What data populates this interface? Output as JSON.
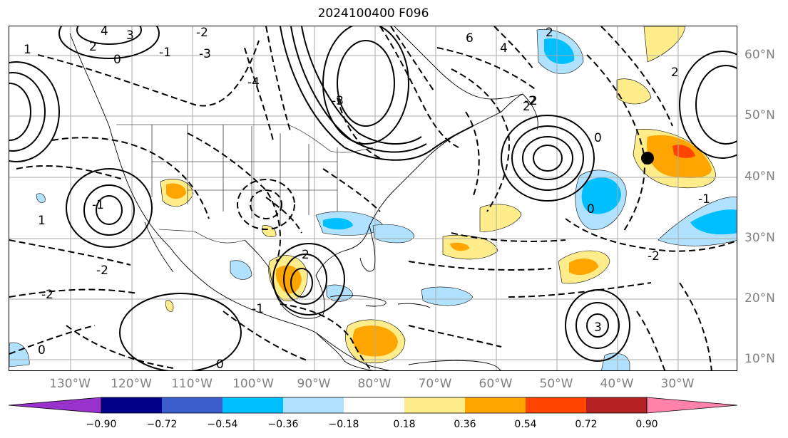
{
  "title": "2024100400 F096",
  "lon_labels": [
    "130°W",
    "120°W",
    "110°W",
    "100°W",
    "90°W",
    "80°W",
    "70°W",
    "60°W",
    "50°W",
    "40°W",
    "30°W"
  ],
  "lat_labels": [
    "60°N",
    "50°N",
    "40°N",
    "30°N",
    "20°N",
    "10°N"
  ],
  "colorbar": {
    "ticks": [
      "−0.90",
      "−0.72",
      "−0.54",
      "−0.36",
      "−0.18",
      "0.18",
      "0.36",
      "0.54",
      "0.72",
      "0.90"
    ],
    "colors": [
      "#9932cc",
      "#00008b",
      "#3a5fcd",
      "#00bfff",
      "#b0e2ff",
      "#ffffff",
      "#ffec8b",
      "#ffa500",
      "#ff4500",
      "#b22222",
      "#ff82ab"
    ]
  },
  "contour_labels": [
    "4",
    "3",
    "2",
    "0",
    "1",
    "-1",
    "-2",
    "-3",
    "-4",
    "6",
    "2",
    "4",
    "0",
    "-2",
    "2",
    "-2",
    "-1",
    "0",
    "2",
    "-3",
    "-2",
    "0",
    "3",
    "-1",
    "1",
    "-1",
    "2",
    "2",
    "-2",
    "0"
  ],
  "marker": {
    "label": "",
    "color": "#000000"
  }
}
